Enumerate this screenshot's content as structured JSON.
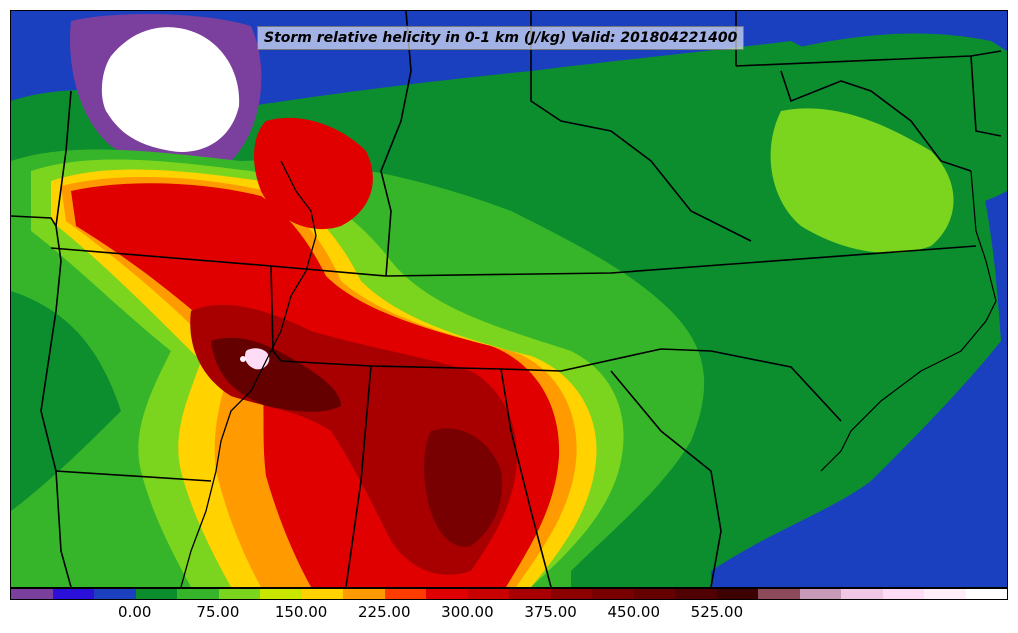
{
  "title": "Storm relative helicity in 0-1 km (J/kg) Valid: 201804221400",
  "colorbar": {
    "colors": [
      "#7b3f9e",
      "#2a10d8",
      "#1b3fbf",
      "#0c8e2e",
      "#37b52a",
      "#7bd51e",
      "#c8e600",
      "#ffd200",
      "#ff9a00",
      "#ff3c00",
      "#e00000",
      "#c80000",
      "#a80000",
      "#8c0000",
      "#780000",
      "#640000",
      "#500000",
      "#3c0000",
      "#8c4a5a",
      "#c99ab8",
      "#f0c8e6",
      "#ffdcf5",
      "#ffeefa",
      "#ffffff"
    ],
    "labels": [
      "0.00",
      "75.00",
      "150.00",
      "225.00",
      "300.00",
      "375.00",
      "450.00",
      "525.00"
    ],
    "label_indices": [
      2,
      4,
      6,
      8,
      10,
      12,
      14,
      16
    ]
  },
  "map": {
    "region": "Southeastern United States",
    "fill_colors": {
      "ocean_low": "#1a3fbf",
      "negative": "#7b3f9e",
      "missing": "#ffffff",
      "low": "#0c8e2e",
      "medium": "#7bd51e",
      "elevated": "#ffd200",
      "high": "#ff3c00",
      "very_high": "#c80000",
      "extreme": "#640000",
      "peak": "#ffdcf5"
    }
  }
}
